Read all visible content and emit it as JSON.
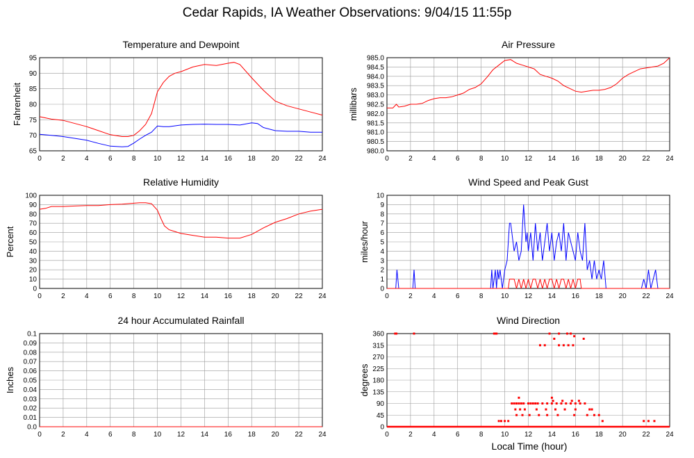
{
  "title": "Cedar Rapids, IA Weather Observations: 9/04/15 11:55p",
  "shared_xlabel": "Local Time (hour)",
  "colors": {
    "primary": "#ff0000",
    "secondary": "#0000ff",
    "grid": "#999999"
  },
  "chart_data": [
    {
      "id": "temp",
      "type": "line",
      "title": "Temperature and Dewpoint",
      "ylabel": "Fahrenheit",
      "xlim": [
        0,
        24
      ],
      "ylim": [
        65,
        95
      ],
      "xticks": [
        0,
        2,
        4,
        6,
        8,
        10,
        12,
        14,
        16,
        18,
        20,
        22,
        24
      ],
      "yticks": [
        65,
        70,
        75,
        80,
        85,
        90,
        95
      ],
      "grid": true,
      "series": [
        {
          "color": "#ff0000",
          "x": [
            0,
            1,
            2,
            3,
            4,
            5,
            6,
            7,
            7.5,
            8,
            8.5,
            9,
            9.5,
            10,
            10.5,
            11,
            11.5,
            12,
            13,
            14,
            15,
            16,
            16.5,
            17,
            18,
            19,
            20,
            21,
            22,
            23,
            24
          ],
          "y": [
            76,
            75.2,
            74.8,
            73.8,
            72.8,
            71.5,
            70.2,
            69.6,
            69.6,
            70,
            71.5,
            73.5,
            77,
            84,
            87,
            89,
            90,
            90.5,
            92,
            92.8,
            92.5,
            93.2,
            93.5,
            92.8,
            88.5,
            84.5,
            81,
            79.5,
            78.5,
            77.5,
            76.5
          ]
        },
        {
          "color": "#0000ff",
          "x": [
            0,
            1,
            2,
            3,
            4,
            5,
            6,
            7,
            7.5,
            8,
            8.5,
            9,
            9.5,
            10,
            10.5,
            11,
            12,
            13,
            14,
            15,
            16,
            17,
            18,
            18.5,
            19,
            20,
            21,
            22,
            23,
            24
          ],
          "y": [
            70.3,
            70,
            69.6,
            69,
            68.4,
            67.4,
            66.5,
            66.3,
            66.4,
            67.5,
            68.8,
            70,
            71,
            73,
            72.8,
            72.8,
            73.3,
            73.5,
            73.6,
            73.5,
            73.5,
            73.3,
            74,
            73.8,
            72.5,
            71.5,
            71.3,
            71.3,
            71,
            71
          ]
        }
      ]
    },
    {
      "id": "pressure",
      "type": "line",
      "title": "Air Pressure",
      "ylabel": "millibars",
      "xlim": [
        0,
        24
      ],
      "ylim": [
        980.0,
        985.0
      ],
      "xticks": [
        0,
        2,
        4,
        6,
        8,
        10,
        12,
        14,
        16,
        18,
        20,
        22,
        24
      ],
      "yticks": [
        "980.0",
        "980.5",
        "981.0",
        "981.5",
        "982.0",
        "982.5",
        "983.0",
        "983.5",
        "984.0",
        "984.5",
        "985.0"
      ],
      "grid": true,
      "series": [
        {
          "color": "#ff0000",
          "x": [
            0,
            0.5,
            0.8,
            1,
            1.5,
            2,
            2.5,
            3,
            3.5,
            4,
            4.5,
            5,
            5.5,
            6,
            6.5,
            7,
            7.5,
            8,
            8.5,
            9,
            9.5,
            10,
            10.5,
            11,
            11.5,
            12,
            12.5,
            13,
            13.5,
            14,
            14.5,
            15,
            15.5,
            16,
            16.5,
            17,
            17.5,
            18,
            18.5,
            19,
            19.5,
            20,
            20.5,
            21,
            21.5,
            22,
            22.5,
            23,
            23.5,
            24
          ],
          "y": [
            982.3,
            982.3,
            982.5,
            982.35,
            982.4,
            982.5,
            982.5,
            982.55,
            982.7,
            982.8,
            982.85,
            982.85,
            982.9,
            983.0,
            983.1,
            983.3,
            983.4,
            983.6,
            983.95,
            984.35,
            984.6,
            984.85,
            984.9,
            984.7,
            984.6,
            984.5,
            984.4,
            984.1,
            984.0,
            983.9,
            983.75,
            983.5,
            983.35,
            983.2,
            983.15,
            983.2,
            983.25,
            983.25,
            983.3,
            983.4,
            983.6,
            983.9,
            984.1,
            984.25,
            984.4,
            984.45,
            984.5,
            984.55,
            984.7,
            985.0
          ]
        }
      ]
    },
    {
      "id": "humidity",
      "type": "line",
      "title": "Relative Humidity",
      "ylabel": "Percent",
      "xlim": [
        0,
        24
      ],
      "ylim": [
        0,
        100
      ],
      "xticks": [
        0,
        2,
        4,
        6,
        8,
        10,
        12,
        14,
        16,
        18,
        20,
        22,
        24
      ],
      "yticks": [
        0,
        10,
        20,
        30,
        40,
        50,
        60,
        70,
        80,
        90,
        100
      ],
      "grid": true,
      "series": [
        {
          "color": "#ff0000",
          "x": [
            0,
            0.5,
            1,
            2,
            3,
            4,
            5,
            6,
            7,
            8,
            8.5,
            9,
            9.5,
            10,
            10.3,
            10.6,
            11,
            12,
            13,
            14,
            15,
            16,
            17,
            18,
            19,
            20,
            21,
            22,
            23,
            24
          ],
          "y": [
            85,
            86,
            88,
            88,
            88.5,
            89,
            89,
            90,
            90.5,
            91.5,
            92,
            92,
            91,
            84,
            75,
            67,
            63,
            59,
            57,
            55,
            55,
            54,
            54,
            58,
            65,
            71,
            75,
            80,
            83,
            85
          ]
        }
      ]
    },
    {
      "id": "wind",
      "type": "line",
      "title": "Wind Speed and Peak Gust",
      "ylabel": "miles/hour",
      "xlim": [
        0,
        24
      ],
      "ylim": [
        0,
        10
      ],
      "xticks": [
        0,
        2,
        4,
        6,
        8,
        10,
        12,
        14,
        16,
        18,
        20,
        22,
        24
      ],
      "yticks": [
        0,
        1,
        2,
        3,
        4,
        5,
        6,
        7,
        8,
        9,
        10
      ],
      "grid": true,
      "series": [
        {
          "color": "#0000ff",
          "x": [
            0,
            0.75,
            0.85,
            1.0,
            2.2,
            2.3,
            2.4,
            8.8,
            8.9,
            9.0,
            9.2,
            9.3,
            9.4,
            9.5,
            9.6,
            9.8,
            10.0,
            10.2,
            10.4,
            10.5,
            10.6,
            10.8,
            11.0,
            11.2,
            11.4,
            11.6,
            11.8,
            11.9,
            12.0,
            12.2,
            12.4,
            12.6,
            12.8,
            13.0,
            13.2,
            13.4,
            13.6,
            13.8,
            14.0,
            14.2,
            14.4,
            14.6,
            14.8,
            15.0,
            15.2,
            15.4,
            15.6,
            15.8,
            16.0,
            16.2,
            16.4,
            16.6,
            16.8,
            17.0,
            17.2,
            17.4,
            17.6,
            17.8,
            18.0,
            18.2,
            18.4,
            18.6,
            18.8,
            21.6,
            21.8,
            22.0,
            22.2,
            22.4,
            22.6,
            22.8,
            23.0,
            24
          ],
          "y": [
            0,
            0,
            2,
            0,
            0,
            2,
            0,
            0,
            2,
            0,
            2,
            0,
            2,
            1,
            2,
            0,
            2,
            3,
            7,
            7,
            6,
            4,
            5,
            3,
            4,
            9,
            5,
            6,
            4,
            6,
            3,
            7,
            4,
            6,
            3,
            5,
            7,
            4,
            6,
            3,
            5,
            6,
            4,
            7,
            3,
            6,
            5,
            4,
            3,
            6,
            4,
            3,
            7,
            2,
            3,
            1,
            3,
            1,
            2,
            1,
            3,
            0,
            0,
            0,
            1,
            0,
            2,
            0,
            1,
            2,
            0,
            0
          ]
        },
        {
          "color": "#ff0000",
          "x": [
            0,
            10.3,
            10.4,
            10.6,
            10.8,
            11.0,
            11.2,
            11.4,
            11.6,
            11.8,
            12.0,
            12.2,
            12.4,
            12.6,
            12.8,
            13.0,
            13.2,
            13.4,
            13.6,
            13.8,
            14.0,
            14.2,
            14.4,
            14.6,
            14.8,
            15.0,
            15.2,
            15.4,
            15.6,
            15.8,
            16.0,
            16.2,
            16.4,
            16.5,
            24
          ],
          "y": [
            0,
            0,
            1,
            1,
            1,
            0,
            1,
            0,
            1,
            0,
            1,
            0,
            1,
            1,
            0,
            1,
            0,
            1,
            0,
            1,
            1,
            0,
            1,
            0,
            1,
            1,
            0,
            1,
            0,
            1,
            0,
            1,
            1,
            0,
            0
          ]
        }
      ]
    },
    {
      "id": "rain",
      "type": "line",
      "title": "24 hour Accumulated Rainfall",
      "ylabel": "Inches",
      "xlim": [
        0,
        24
      ],
      "ylim": [
        0,
        0.1
      ],
      "xticks": [
        0,
        2,
        4,
        6,
        8,
        10,
        12,
        14,
        16,
        18,
        20,
        22,
        24
      ],
      "yticks": [
        "0.0",
        "0.01",
        "0.02",
        "0.03",
        "0.04",
        "0.05",
        "0.06",
        "0.07",
        "0.08",
        "0.09",
        "0.1"
      ],
      "grid": true,
      "series": [
        {
          "color": "#ff0000",
          "x": [
            0,
            24
          ],
          "y": [
            0,
            0
          ]
        }
      ]
    },
    {
      "id": "direction",
      "type": "scatter",
      "title": "Wind Direction",
      "ylabel": "degrees",
      "xlim": [
        0,
        24
      ],
      "ylim": [
        0,
        360
      ],
      "xticks": [
        0,
        2,
        4,
        6,
        8,
        10,
        12,
        14,
        16,
        18,
        20,
        22,
        24
      ],
      "yticks": [
        0,
        45,
        90,
        135,
        180,
        225,
        270,
        315,
        360
      ],
      "grid": true,
      "series": [
        {
          "color": "#ff0000",
          "x": [
            0.7,
            0.8,
            2.3,
            9.1,
            9.2,
            9.3,
            13.8,
            14.6,
            15.3,
            15.6,
            15.9,
            16.7,
            10.6,
            10.8,
            11.0,
            11.2,
            11.4,
            11.6,
            12.0,
            12.2,
            12.4,
            12.6,
            12.8,
            13.2,
            13.6,
            14.0,
            14.4,
            14.8,
            15.2,
            15.6,
            16.0,
            16.4,
            16.8,
            17.2,
            13.0,
            13.4,
            14.2,
            14.6,
            15.0,
            15.4,
            15.8,
            10.9,
            11.3,
            11.7,
            12.7,
            13.5,
            14.3,
            15.1,
            16.0,
            17.4,
            11.0,
            11.5,
            12.1,
            12.9,
            13.6,
            14.5,
            15.9,
            17.0,
            17.6,
            9.5,
            9.7,
            10.0,
            10.3,
            18.0,
            18.3,
            21.8,
            22.2,
            22.7,
            14.1,
            14.9,
            15.7,
            16.3,
            11.2,
            14.0
          ],
          "y": [
            360,
            360,
            360,
            360,
            360,
            360,
            360,
            360,
            360,
            360,
            350,
            340,
            90,
            90,
            90,
            90,
            90,
            90,
            90,
            90,
            90,
            90,
            90,
            90,
            90,
            90,
            90,
            90,
            90,
            90,
            90,
            90,
            90,
            67,
            315,
            315,
            340,
            315,
            315,
            315,
            315,
            67,
            67,
            67,
            67,
            67,
            67,
            67,
            67,
            67,
            45,
            45,
            45,
            45,
            45,
            45,
            45,
            45,
            45,
            22,
            22,
            22,
            22,
            45,
            22,
            22,
            22,
            22,
            100,
            100,
            100,
            100,
            112,
            112
          ]
        }
      ],
      "baseline": {
        "x": [
          0,
          24
        ],
        "y": [
          0,
          0
        ]
      }
    }
  ]
}
